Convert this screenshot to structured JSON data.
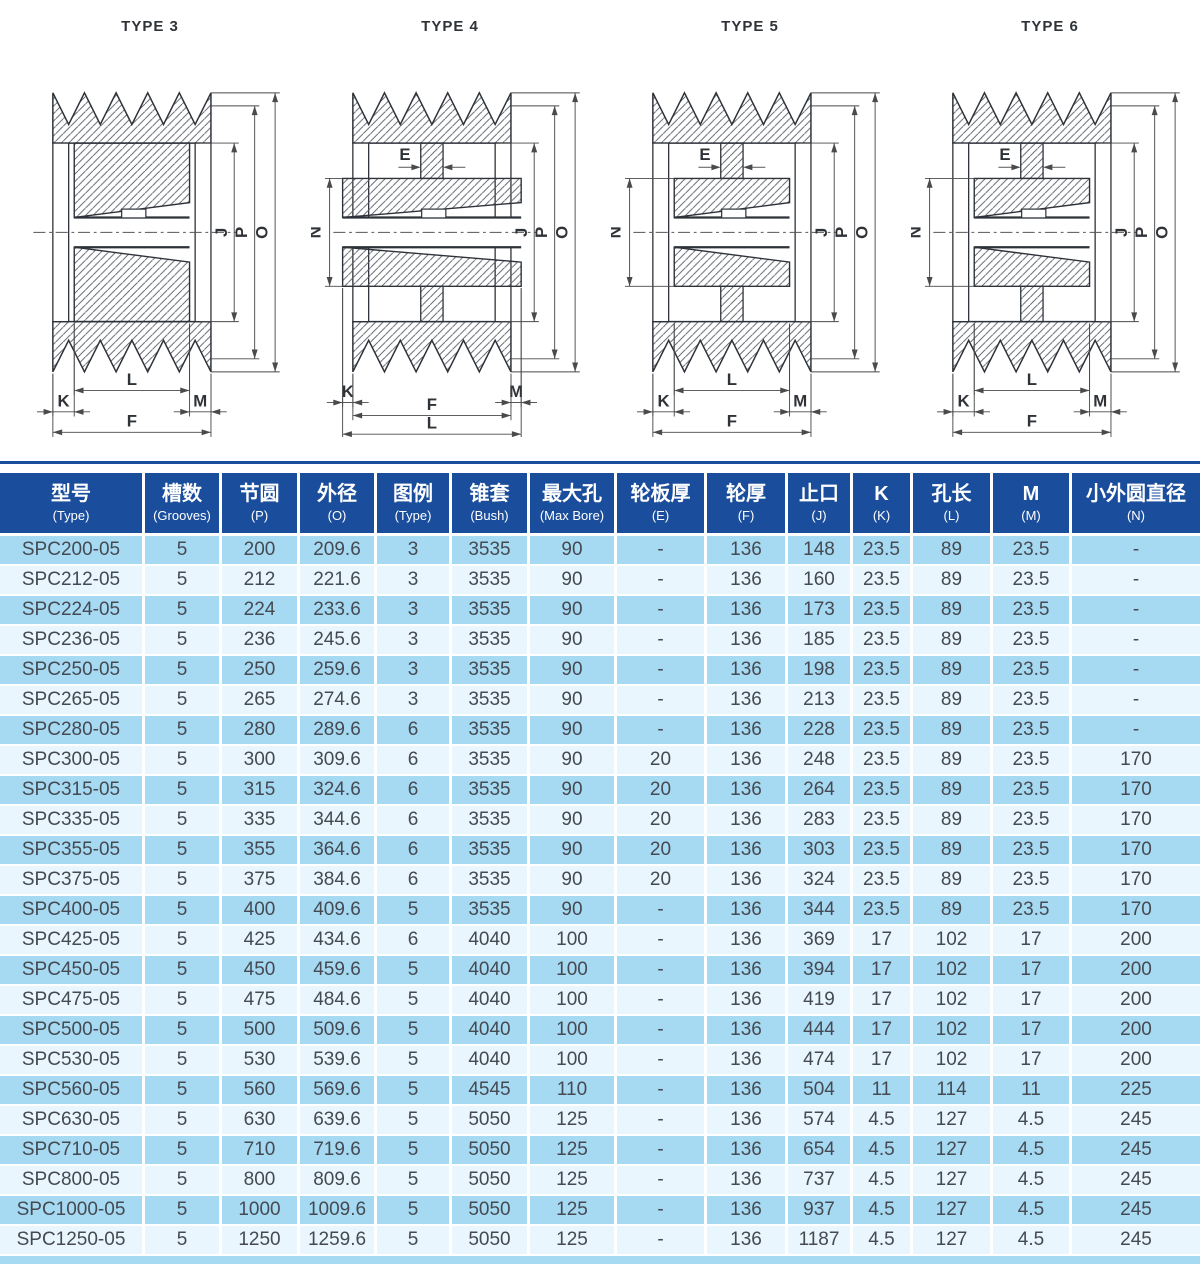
{
  "colors": {
    "header_bg": "#1a4e9c",
    "row_dark": "#a6d9f2",
    "row_light": "#e9f6fd",
    "cell_text": "#454a52",
    "drawing_line": "#2e333a"
  },
  "diagrams": [
    {
      "title": "TYPE 3",
      "dims": {
        "right": [
          "J",
          "P",
          "O"
        ],
        "left": [],
        "top": [],
        "bottom": [
          "L",
          "K",
          "M",
          "F"
        ]
      }
    },
    {
      "title": "TYPE 4",
      "dims": {
        "right": [
          "J",
          "P",
          "O"
        ],
        "left": [
          "N"
        ],
        "top": [
          "E"
        ],
        "bottom": [
          "K",
          "M",
          "F",
          "L"
        ]
      }
    },
    {
      "title": "TYPE 5",
      "dims": {
        "right": [
          "J",
          "P",
          "O"
        ],
        "left": [
          "N"
        ],
        "top": [
          "E"
        ],
        "bottom": [
          "L",
          "K",
          "M",
          "F"
        ]
      }
    },
    {
      "title": "TYPE 6",
      "dims": {
        "right": [
          "J",
          "P",
          "O"
        ],
        "left": [
          "N"
        ],
        "top": [
          "E"
        ],
        "bottom": [
          "L",
          "K",
          "M",
          "F"
        ]
      }
    }
  ],
  "table": {
    "columns": [
      {
        "zh": "型号",
        "en": "(Type)"
      },
      {
        "zh": "槽数",
        "en": "(Grooves)"
      },
      {
        "zh": "节圆",
        "en": "(P)"
      },
      {
        "zh": "外径",
        "en": "(O)"
      },
      {
        "zh": "图例",
        "en": "(Type)"
      },
      {
        "zh": "锥套",
        "en": "(Bush)"
      },
      {
        "zh": "最大孔",
        "en": "(Max Bore)"
      },
      {
        "zh": "轮板厚",
        "en": "(E)"
      },
      {
        "zh": "轮厚",
        "en": "(F)"
      },
      {
        "zh": "止口",
        "en": "(J)"
      },
      {
        "zh": "K",
        "en": "(K)"
      },
      {
        "zh": "孔长",
        "en": "(L)"
      },
      {
        "zh": "M",
        "en": "(M)"
      },
      {
        "zh": "小外圆直径",
        "en": "(N)"
      }
    ],
    "rows": [
      [
        "SPC200-05",
        "5",
        "200",
        "209.6",
        "3",
        "3535",
        "90",
        "-",
        "136",
        "148",
        "23.5",
        "89",
        "23.5",
        "-"
      ],
      [
        "SPC212-05",
        "5",
        "212",
        "221.6",
        "3",
        "3535",
        "90",
        "-",
        "136",
        "160",
        "23.5",
        "89",
        "23.5",
        "-"
      ],
      [
        "SPC224-05",
        "5",
        "224",
        "233.6",
        "3",
        "3535",
        "90",
        "-",
        "136",
        "173",
        "23.5",
        "89",
        "23.5",
        "-"
      ],
      [
        "SPC236-05",
        "5",
        "236",
        "245.6",
        "3",
        "3535",
        "90",
        "-",
        "136",
        "185",
        "23.5",
        "89",
        "23.5",
        "-"
      ],
      [
        "SPC250-05",
        "5",
        "250",
        "259.6",
        "3",
        "3535",
        "90",
        "-",
        "136",
        "198",
        "23.5",
        "89",
        "23.5",
        "-"
      ],
      [
        "SPC265-05",
        "5",
        "265",
        "274.6",
        "3",
        "3535",
        "90",
        "-",
        "136",
        "213",
        "23.5",
        "89",
        "23.5",
        "-"
      ],
      [
        "SPC280-05",
        "5",
        "280",
        "289.6",
        "6",
        "3535",
        "90",
        "-",
        "136",
        "228",
        "23.5",
        "89",
        "23.5",
        "-"
      ],
      [
        "SPC300-05",
        "5",
        "300",
        "309.6",
        "6",
        "3535",
        "90",
        "20",
        "136",
        "248",
        "23.5",
        "89",
        "23.5",
        "170"
      ],
      [
        "SPC315-05",
        "5",
        "315",
        "324.6",
        "6",
        "3535",
        "90",
        "20",
        "136",
        "264",
        "23.5",
        "89",
        "23.5",
        "170"
      ],
      [
        "SPC335-05",
        "5",
        "335",
        "344.6",
        "6",
        "3535",
        "90",
        "20",
        "136",
        "283",
        "23.5",
        "89",
        "23.5",
        "170"
      ],
      [
        "SPC355-05",
        "5",
        "355",
        "364.6",
        "6",
        "3535",
        "90",
        "20",
        "136",
        "303",
        "23.5",
        "89",
        "23.5",
        "170"
      ],
      [
        "SPC375-05",
        "5",
        "375",
        "384.6",
        "6",
        "3535",
        "90",
        "20",
        "136",
        "324",
        "23.5",
        "89",
        "23.5",
        "170"
      ],
      [
        "SPC400-05",
        "5",
        "400",
        "409.6",
        "5",
        "3535",
        "90",
        "-",
        "136",
        "344",
        "23.5",
        "89",
        "23.5",
        "170"
      ],
      [
        "SPC425-05",
        "5",
        "425",
        "434.6",
        "6",
        "4040",
        "100",
        "-",
        "136",
        "369",
        "17",
        "102",
        "17",
        "200"
      ],
      [
        "SPC450-05",
        "5",
        "450",
        "459.6",
        "5",
        "4040",
        "100",
        "-",
        "136",
        "394",
        "17",
        "102",
        "17",
        "200"
      ],
      [
        "SPC475-05",
        "5",
        "475",
        "484.6",
        "5",
        "4040",
        "100",
        "-",
        "136",
        "419",
        "17",
        "102",
        "17",
        "200"
      ],
      [
        "SPC500-05",
        "5",
        "500",
        "509.6",
        "5",
        "4040",
        "100",
        "-",
        "136",
        "444",
        "17",
        "102",
        "17",
        "200"
      ],
      [
        "SPC530-05",
        "5",
        "530",
        "539.6",
        "5",
        "4040",
        "100",
        "-",
        "136",
        "474",
        "17",
        "102",
        "17",
        "200"
      ],
      [
        "SPC560-05",
        "5",
        "560",
        "569.6",
        "5",
        "4545",
        "110",
        "-",
        "136",
        "504",
        "11",
        "114",
        "11",
        "225"
      ],
      [
        "SPC630-05",
        "5",
        "630",
        "639.6",
        "5",
        "5050",
        "125",
        "-",
        "136",
        "574",
        "4.5",
        "127",
        "4.5",
        "245"
      ],
      [
        "SPC710-05",
        "5",
        "710",
        "719.6",
        "5",
        "5050",
        "125",
        "-",
        "136",
        "654",
        "4.5",
        "127",
        "4.5",
        "245"
      ],
      [
        "SPC800-05",
        "5",
        "800",
        "809.6",
        "5",
        "5050",
        "125",
        "-",
        "136",
        "737",
        "4.5",
        "127",
        "4.5",
        "245"
      ],
      [
        "SPC1000-05",
        "5",
        "1000",
        "1009.6",
        "5",
        "5050",
        "125",
        "-",
        "136",
        "937",
        "4.5",
        "127",
        "4.5",
        "245"
      ],
      [
        "SPC1250-05",
        "5",
        "1250",
        "1259.6",
        "5",
        "5050",
        "125",
        "-",
        "136",
        "1187",
        "4.5",
        "127",
        "4.5",
        "245"
      ]
    ]
  }
}
